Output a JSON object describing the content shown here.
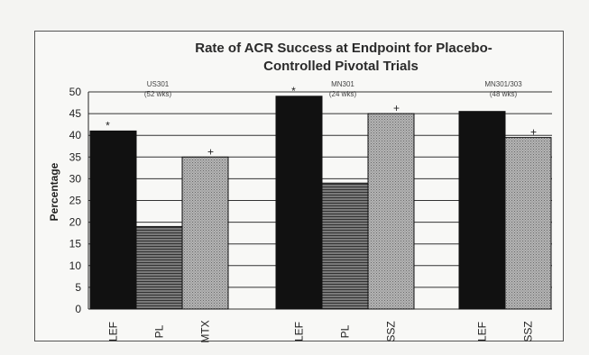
{
  "chart_data": {
    "type": "bar",
    "title_lines": [
      "Rate of ACR Success at Endpoint for Placebo-",
      "Controlled Pivotal Trials"
    ],
    "ylabel": "Percentage",
    "ylim": [
      0,
      50
    ],
    "yticks": [
      0,
      5,
      10,
      15,
      20,
      25,
      30,
      35,
      40,
      45,
      50
    ],
    "grid": true,
    "groups": [
      {
        "label_lines": [
          "US301",
          "(52 wks)"
        ],
        "bars": [
          {
            "category": "LEF",
            "value": 41,
            "pattern": "solid",
            "marker": "*"
          },
          {
            "category": "PL",
            "value": 19,
            "pattern": "horizontal-lines",
            "marker": ""
          },
          {
            "category": "MTX",
            "value": 35,
            "pattern": "stipple",
            "marker": "+"
          }
        ]
      },
      {
        "label_lines": [
          "MN301",
          "(24 wks)"
        ],
        "bars": [
          {
            "category": "LEF",
            "value": 49,
            "pattern": "solid",
            "marker": "*"
          },
          {
            "category": "PL",
            "value": 29,
            "pattern": "horizontal-lines",
            "marker": ""
          },
          {
            "category": "SSZ",
            "value": 45,
            "pattern": "stipple",
            "marker": "+"
          }
        ]
      },
      {
        "label_lines": [
          "MN301/303",
          "(48 wks)"
        ],
        "bars": [
          {
            "category": "LEF",
            "value": 45.5,
            "pattern": "solid",
            "marker": ""
          },
          {
            "category": "SSZ",
            "value": 39.5,
            "pattern": "stipple",
            "marker": "+"
          }
        ]
      }
    ],
    "colors": {
      "solid": "#111111",
      "lines": "#555555",
      "stipple": "#9a9a9a"
    }
  }
}
